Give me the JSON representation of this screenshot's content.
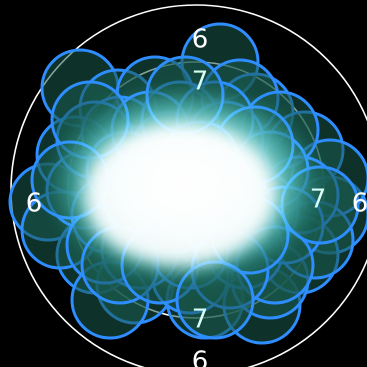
{
  "ring_labels": {
    "outer_top": "6",
    "outer_left": "6",
    "outer_right": "6",
    "outer_bottom": "6",
    "inner_top": "7",
    "inner_right": "7",
    "inner_bottom": "7"
  },
  "colors": {
    "background": "#000000",
    "ring_stroke": "#ffffff",
    "hit_fill": "#1a5a4d",
    "hit_stroke": "#2e8dff",
    "glow": "#7ffcff"
  },
  "hits_count_estimate": 60
}
